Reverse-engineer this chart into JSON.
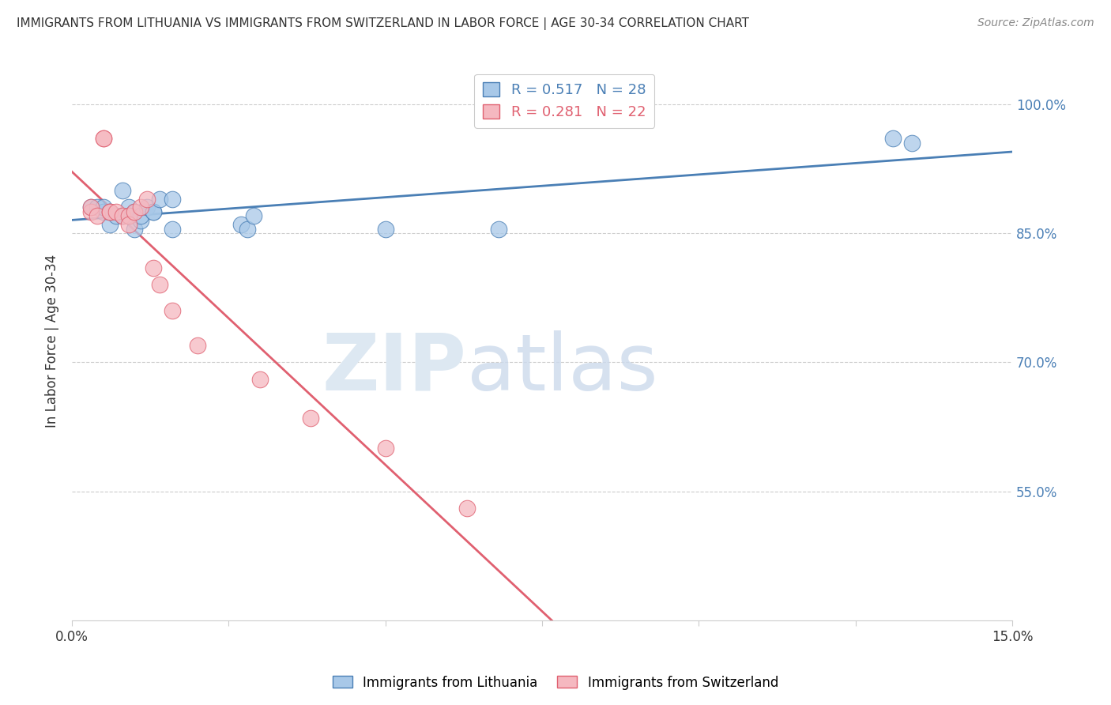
{
  "title": "IMMIGRANTS FROM LITHUANIA VS IMMIGRANTS FROM SWITZERLAND IN LABOR FORCE | AGE 30-34 CORRELATION CHART",
  "source": "Source: ZipAtlas.com",
  "ylabel": "In Labor Force | Age 30-34",
  "ytick_labels": [
    "100.0%",
    "85.0%",
    "70.0%",
    "55.0%"
  ],
  "ytick_values": [
    1.0,
    0.85,
    0.7,
    0.55
  ],
  "xlim": [
    0.0,
    0.15
  ],
  "ylim": [
    0.4,
    1.05
  ],
  "blue_R": 0.517,
  "blue_N": 28,
  "pink_R": 0.281,
  "pink_N": 22,
  "legend_label_blue": "Immigrants from Lithuania",
  "legend_label_pink": "Immigrants from Switzerland",
  "blue_color": "#a8c8e8",
  "pink_color": "#f5b8c0",
  "blue_line_color": "#4a7fb5",
  "pink_line_color": "#e06070",
  "blue_scatter_x": [
    0.003,
    0.004,
    0.005,
    0.005,
    0.006,
    0.006,
    0.007,
    0.008,
    0.008,
    0.009,
    0.009,
    0.01,
    0.01,
    0.011,
    0.011,
    0.012,
    0.013,
    0.013,
    0.014,
    0.016,
    0.016,
    0.027,
    0.028,
    0.029,
    0.05,
    0.068,
    0.131,
    0.134
  ],
  "blue_scatter_y": [
    0.88,
    0.88,
    0.875,
    0.88,
    0.86,
    0.875,
    0.87,
    0.9,
    0.87,
    0.88,
    0.87,
    0.855,
    0.875,
    0.865,
    0.87,
    0.88,
    0.875,
    0.875,
    0.89,
    0.89,
    0.855,
    0.86,
    0.855,
    0.87,
    0.855,
    0.855,
    0.96,
    0.955
  ],
  "pink_scatter_x": [
    0.003,
    0.003,
    0.004,
    0.005,
    0.005,
    0.006,
    0.006,
    0.007,
    0.008,
    0.009,
    0.009,
    0.01,
    0.011,
    0.012,
    0.013,
    0.014,
    0.016,
    0.02,
    0.03,
    0.038,
    0.05,
    0.063
  ],
  "pink_scatter_y": [
    0.875,
    0.88,
    0.87,
    0.96,
    0.96,
    0.875,
    0.875,
    0.875,
    0.87,
    0.87,
    0.86,
    0.875,
    0.88,
    0.89,
    0.81,
    0.79,
    0.76,
    0.72,
    0.68,
    0.635,
    0.6,
    0.53
  ]
}
